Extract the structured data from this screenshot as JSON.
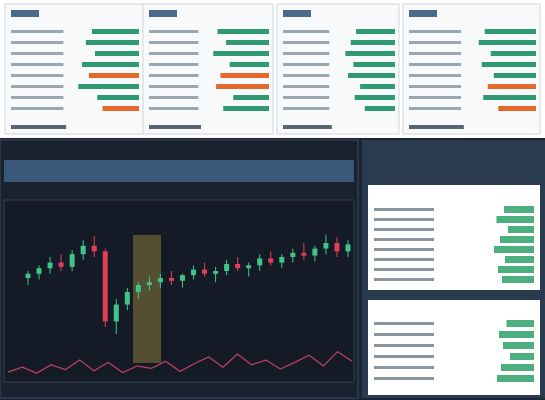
{
  "panels": [
    {
      "bars": [
        62,
        70,
        58,
        75,
        66,
        80,
        55,
        48
      ],
      "colors": [
        "#2f9a72",
        "#2f9a72",
        "#2f9a72",
        "#2f9a72",
        "#e4672c",
        "#2f9a72",
        "#2f9a72",
        "#e4672c"
      ]
    },
    {
      "bars": [
        72,
        60,
        78,
        55,
        68,
        74,
        50,
        64
      ],
      "colors": [
        "#2f9a72",
        "#2f9a72",
        "#2f9a72",
        "#2f9a72",
        "#e4672c",
        "#e4672c",
        "#2f9a72",
        "#2f9a72"
      ]
    },
    {
      "bars": [
        58,
        66,
        74,
        62,
        70,
        52,
        60,
        45
      ],
      "colors": [
        "#2f9a72",
        "#2f9a72",
        "#2f9a72",
        "#2f9a72",
        "#2f9a72",
        "#2f9a72",
        "#2f9a72",
        "#2f9a72"
      ]
    },
    {
      "bars": [
        68,
        76,
        60,
        72,
        56,
        64,
        70,
        50
      ],
      "colors": [
        "#2f9a72",
        "#2f9a72",
        "#2f9a72",
        "#2f9a72",
        "#2f9a72",
        "#e4672c",
        "#2f9a72",
        "#e4672c"
      ]
    }
  ],
  "candles": [
    [
      55,
      60,
      50,
      58
    ],
    [
      58,
      64,
      54,
      62
    ],
    [
      62,
      70,
      58,
      66
    ],
    [
      66,
      72,
      60,
      63
    ],
    [
      63,
      75,
      60,
      72
    ],
    [
      72,
      82,
      68,
      78
    ],
    [
      78,
      85,
      70,
      74
    ],
    [
      74,
      76,
      20,
      24
    ],
    [
      24,
      40,
      15,
      36
    ],
    [
      36,
      48,
      32,
      45
    ],
    [
      45,
      52,
      40,
      50
    ],
    [
      50,
      56,
      46,
      52
    ],
    [
      52,
      58,
      48,
      55
    ],
    [
      55,
      60,
      50,
      53
    ],
    [
      53,
      58,
      48,
      57
    ],
    [
      57,
      64,
      54,
      61
    ],
    [
      61,
      66,
      56,
      58
    ],
    [
      58,
      63,
      52,
      60
    ],
    [
      60,
      68,
      57,
      65
    ],
    [
      65,
      70,
      60,
      62
    ],
    [
      62,
      66,
      56,
      64
    ],
    [
      64,
      72,
      60,
      69
    ],
    [
      69,
      74,
      64,
      66
    ],
    [
      66,
      72,
      62,
      70
    ],
    [
      70,
      76,
      66,
      73
    ],
    [
      73,
      80,
      68,
      71
    ],
    [
      71,
      78,
      67,
      76
    ],
    [
      76,
      86,
      72,
      80
    ],
    [
      80,
      84,
      70,
      74
    ],
    [
      74,
      82,
      70,
      79
    ]
  ],
  "volume": [
    10,
    18,
    8,
    22,
    14,
    30,
    12,
    26,
    9,
    20,
    16,
    28,
    11,
    24,
    35,
    18,
    40,
    22,
    30,
    15,
    26,
    38,
    20,
    44,
    28
  ],
  "side_top": [
    60,
    75,
    52,
    68,
    80,
    58,
    72,
    64
  ],
  "side_bottom": [
    55,
    70,
    62,
    48,
    66,
    74
  ]
}
